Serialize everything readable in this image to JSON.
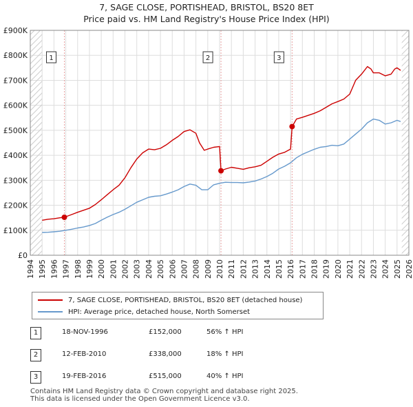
{
  "title_line1": "7, SAGE CLOSE, PORTISHEAD, BRISTOL, BS20 8ET",
  "title_line2": "Price paid vs. HM Land Registry's House Price Index (HPI)",
  "colors": {
    "property": "#cc0000",
    "hpi": "#6699cc",
    "grid": "#dddddd",
    "marker": "#cc0000",
    "sale_line": "#e8a0a0",
    "hatch": "#cccccc"
  },
  "legend": {
    "property_label": "7, SAGE CLOSE, PORTISHEAD, BRISTOL, BS20 8ET (detached house)",
    "hpi_label": "HPI: Average price, detached house, North Somerset"
  },
  "sales": [
    {
      "num": "1",
      "date": "18-NOV-1996",
      "price": "£152,000",
      "hpi": "56% ↑ HPI",
      "year": 1996.88,
      "value": 152000
    },
    {
      "num": "2",
      "date": "12-FEB-2010",
      "price": "£338,000",
      "hpi": "18% ↑ HPI",
      "year": 2010.12,
      "value": 338000
    },
    {
      "num": "3",
      "date": "19-FEB-2016",
      "price": "£515,000",
      "hpi": "40% ↑ HPI",
      "year": 2016.13,
      "value": 515000
    }
  ],
  "footer_line1": "Contains HM Land Registry data © Crown copyright and database right 2025.",
  "footer_line2": "This data is licensed under the Open Government Licence v3.0.",
  "chart_data": {
    "type": "line",
    "title": "7, SAGE CLOSE, PORTISHEAD, BRISTOL, BS20 8ET — Price paid vs. HM Land Registry's House Price Index (HPI)",
    "xlabel": "",
    "ylabel": "",
    "xlim": [
      1994,
      2026
    ],
    "ylim": [
      0,
      900000
    ],
    "x_ticks": [
      1994,
      1995,
      1996,
      1997,
      1998,
      1999,
      2000,
      2001,
      2002,
      2003,
      2004,
      2005,
      2006,
      2007,
      2008,
      2009,
      2010,
      2011,
      2012,
      2013,
      2014,
      2015,
      2016,
      2017,
      2018,
      2019,
      2020,
      2021,
      2022,
      2023,
      2024,
      2025,
      2026
    ],
    "y_ticks": [
      {
        "value": 0,
        "label": "£0"
      },
      {
        "value": 100000,
        "label": "£100K"
      },
      {
        "value": 200000,
        "label": "£200K"
      },
      {
        "value": 300000,
        "label": "£300K"
      },
      {
        "value": 400000,
        "label": "£400K"
      },
      {
        "value": 500000,
        "label": "£500K"
      },
      {
        "value": 600000,
        "label": "£600K"
      },
      {
        "value": 700000,
        "label": "£700K"
      },
      {
        "value": 800000,
        "label": "£800K"
      },
      {
        "value": 900000,
        "label": "£900K"
      }
    ],
    "grid": true,
    "data_start": 1995.0,
    "data_end": 2025.4,
    "series": [
      {
        "name": "7, SAGE CLOSE, PORTISHEAD, BRISTOL, BS20 8ET (detached house)",
        "x": [
          1995.0,
          1995.5,
          1996.0,
          1996.5,
          1996.88,
          1997.5,
          1998.0,
          1998.5,
          1999.0,
          1999.5,
          2000.0,
          2000.5,
          2001.0,
          2001.5,
          2002.0,
          2002.5,
          2003.0,
          2003.5,
          2004.0,
          2004.5,
          2005.0,
          2005.5,
          2006.0,
          2006.5,
          2007.0,
          2007.5,
          2008.0,
          2008.3,
          2008.7,
          2009.0,
          2009.5,
          2010.0,
          2010.12,
          2010.5,
          2011.0,
          2011.5,
          2012.0,
          2012.5,
          2013.0,
          2013.5,
          2014.0,
          2014.5,
          2015.0,
          2015.5,
          2016.0,
          2016.13,
          2016.5,
          2017.0,
          2017.5,
          2018.0,
          2018.5,
          2019.0,
          2019.5,
          2020.0,
          2020.5,
          2021.0,
          2021.5,
          2022.0,
          2022.5,
          2022.8,
          2023.0,
          2023.5,
          2024.0,
          2024.5,
          2024.8,
          2025.0,
          2025.3
        ],
        "values": [
          140000,
          144000,
          146000,
          150000,
          152000,
          163000,
          172000,
          180000,
          188000,
          203000,
          222000,
          242000,
          262000,
          280000,
          310000,
          350000,
          385000,
          410000,
          425000,
          422000,
          428000,
          442000,
          460000,
          475000,
          495000,
          502000,
          488000,
          450000,
          420000,
          425000,
          432000,
          435000,
          338000,
          345000,
          352000,
          348000,
          344000,
          350000,
          354000,
          360000,
          376000,
          392000,
          405000,
          412000,
          425000,
          515000,
          545000,
          552000,
          560000,
          568000,
          578000,
          592000,
          606000,
          615000,
          625000,
          645000,
          700000,
          725000,
          755000,
          745000,
          730000,
          730000,
          718000,
          725000,
          745000,
          750000,
          740000
        ]
      },
      {
        "name": "HPI: Average price, detached house, North Somerset",
        "x": [
          1995.0,
          1995.5,
          1996.0,
          1996.5,
          1997.0,
          1997.5,
          1998.0,
          1998.5,
          1999.0,
          1999.5,
          2000.0,
          2000.5,
          2001.0,
          2001.5,
          2002.0,
          2002.5,
          2003.0,
          2003.5,
          2004.0,
          2004.5,
          2005.0,
          2005.5,
          2006.0,
          2006.5,
          2007.0,
          2007.5,
          2008.0,
          2008.5,
          2009.0,
          2009.5,
          2010.0,
          2010.5,
          2011.0,
          2011.5,
          2012.0,
          2012.5,
          2013.0,
          2013.5,
          2014.0,
          2014.5,
          2015.0,
          2015.5,
          2016.0,
          2016.5,
          2017.0,
          2017.5,
          2018.0,
          2018.5,
          2019.0,
          2019.5,
          2020.0,
          2020.5,
          2021.0,
          2021.5,
          2022.0,
          2022.5,
          2023.0,
          2023.5,
          2024.0,
          2024.5,
          2025.0,
          2025.3
        ],
        "values": [
          91000,
          92000,
          94000,
          96000,
          100000,
          104000,
          109000,
          113000,
          119000,
          127000,
          140000,
          152000,
          163000,
          172000,
          184000,
          198000,
          212000,
          222000,
          232000,
          236000,
          238000,
          245000,
          253000,
          262000,
          275000,
          285000,
          280000,
          262000,
          262000,
          282000,
          288000,
          292000,
          291000,
          291000,
          290000,
          293000,
          297000,
          305000,
          315000,
          328000,
          345000,
          356000,
          370000,
          390000,
          404000,
          414000,
          424000,
          432000,
          435000,
          440000,
          438000,
          445000,
          465000,
          485000,
          505000,
          530000,
          545000,
          540000,
          525000,
          530000,
          540000,
          535000
        ]
      }
    ],
    "annotations": [
      {
        "label": "1",
        "year": 1996.88
      },
      {
        "label": "2",
        "year": 2010.12
      },
      {
        "label": "3",
        "year": 2016.13
      }
    ]
  }
}
